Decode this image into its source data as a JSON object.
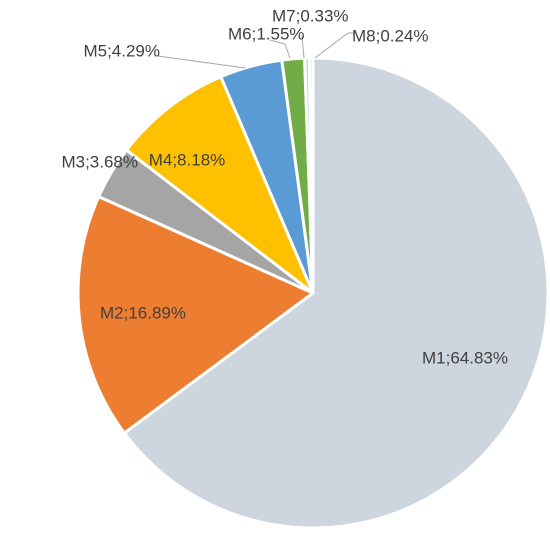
{
  "chart_data": {
    "type": "pie",
    "title": "",
    "labels": [
      "M1",
      "M2",
      "M3",
      "M4",
      "M5",
      "M6",
      "M7",
      "M8"
    ],
    "values": [
      64.83,
      16.89,
      3.68,
      8.18,
      4.29,
      1.55,
      0.33,
      0.24
    ],
    "data_labels": [
      "M1;64.83%",
      "M2;16.89%",
      "M3;3.68%",
      "M4;8.18%",
      "M5;4.29%",
      "M6;1.55%",
      "M7;0.33%",
      "M8;0.24%"
    ],
    "colors": [
      "#cdd5df",
      "#ed7d31",
      "#a5a5a5",
      "#ffc000",
      "#5b9bd5",
      "#70ad47",
      "#cdd5df",
      "#cdd5df"
    ],
    "start_angle_deg": 0,
    "direction": "clockwise",
    "legend": "none"
  }
}
